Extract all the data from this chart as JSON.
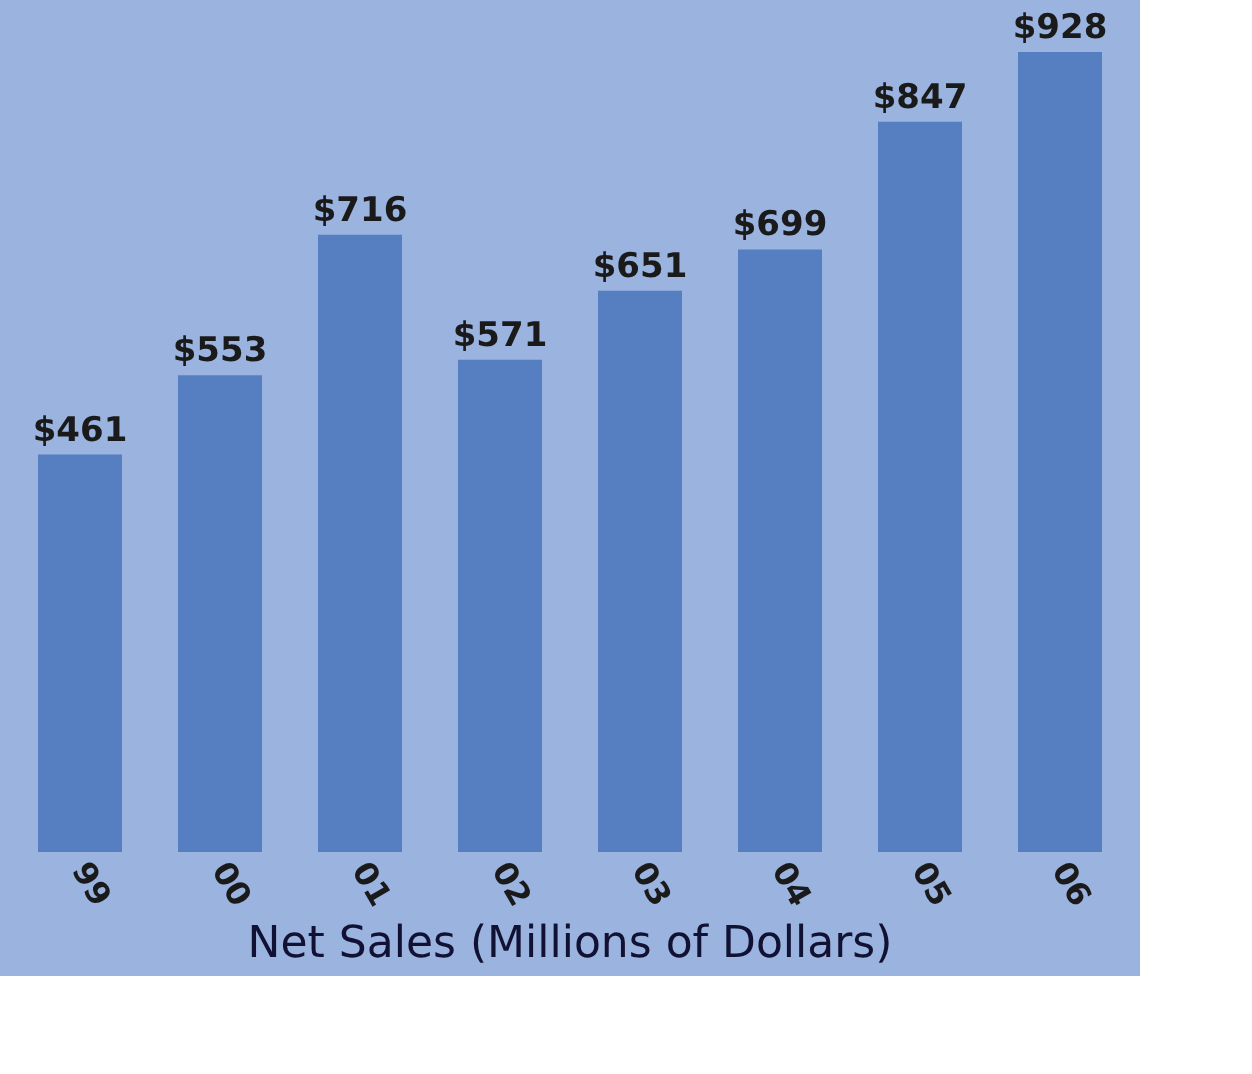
{
  "chart_data": {
    "type": "bar",
    "title": "Net Sales (Millions of Dollars)",
    "categories": [
      "99",
      "00",
      "01",
      "02",
      "03",
      "04",
      "05",
      "06"
    ],
    "values": [
      461,
      553,
      716,
      571,
      651,
      699,
      847,
      928
    ],
    "value_labels": [
      "$461",
      "$553",
      "$716",
      "$571",
      "$651",
      "$699",
      "$847",
      "$928"
    ],
    "color": "#567fc2",
    "grid": false
  }
}
